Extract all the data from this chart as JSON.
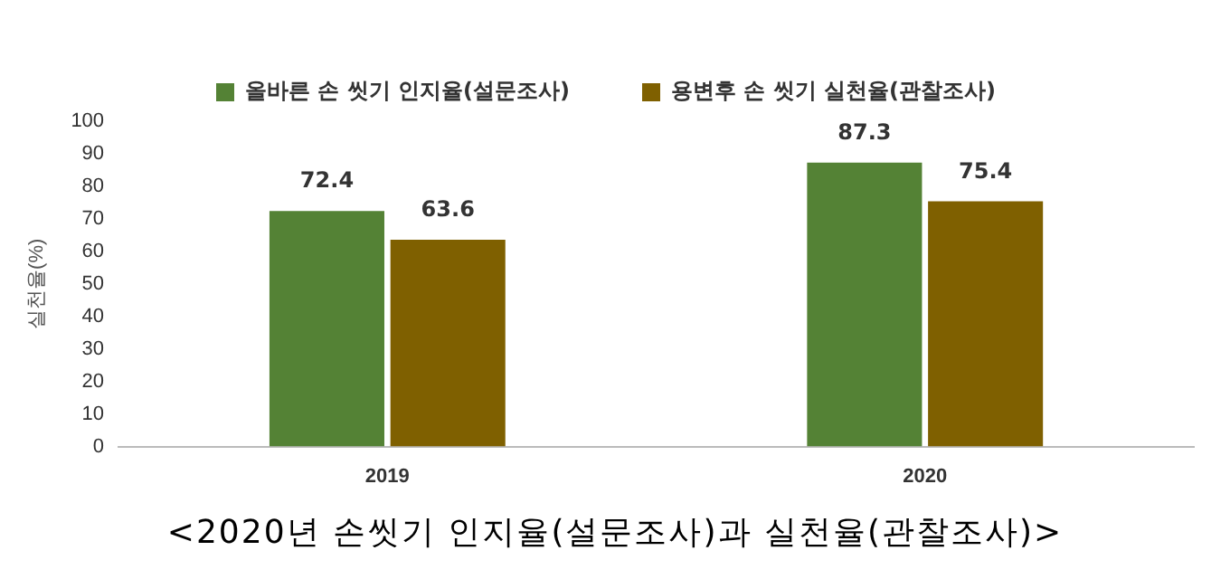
{
  "chart_data": {
    "type": "bar",
    "ylabel": "실천율(%)",
    "categories": [
      "2019",
      "2020"
    ],
    "series": [
      {
        "name": "올바른 손 씻기 인지율(설문조사)",
        "color": "#548235",
        "values": [
          72.4,
          87.3
        ]
      },
      {
        "name": "용변후 손 씻기 실천율(관찰조사)",
        "color": "#7f6000",
        "values": [
          63.6,
          75.4
        ]
      }
    ],
    "ylim": [
      0,
      100
    ],
    "yticks": [
      0,
      10,
      20,
      30,
      40,
      50,
      60,
      70,
      80,
      90,
      100
    ],
    "grid": false,
    "legend": "top",
    "data_labels": true,
    "annotations": [
      "<2020년 손씻기 인지율(설문조사)과 실천율(관찰조사)>"
    ]
  }
}
